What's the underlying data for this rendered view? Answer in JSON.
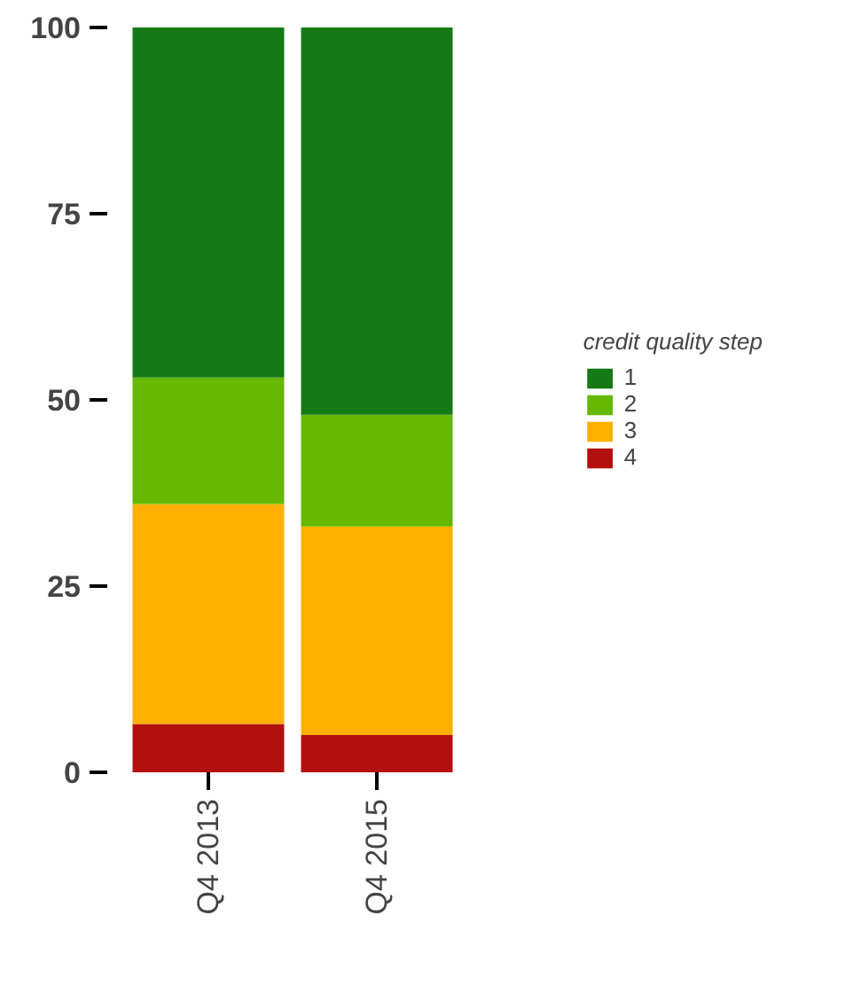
{
  "chart_data": {
    "type": "bar",
    "stacked": true,
    "categories": [
      "Q4 2013",
      "Q4 2015"
    ],
    "series": [
      {
        "name": "4",
        "color": "#b30f0f",
        "values": [
          6.5,
          5
        ]
      },
      {
        "name": "3",
        "color": "#ffb000",
        "values": [
          29.5,
          28
        ]
      },
      {
        "name": "2",
        "color": "#66b800",
        "values": [
          17,
          15
        ]
      },
      {
        "name": "1",
        "color": "#157a15",
        "values": [
          47,
          52
        ]
      }
    ],
    "legend_title": "credit quality step",
    "legend": "right",
    "grid": false,
    "ylim": [
      0,
      100
    ],
    "yticks": [
      0,
      25,
      50,
      75,
      100
    ]
  }
}
